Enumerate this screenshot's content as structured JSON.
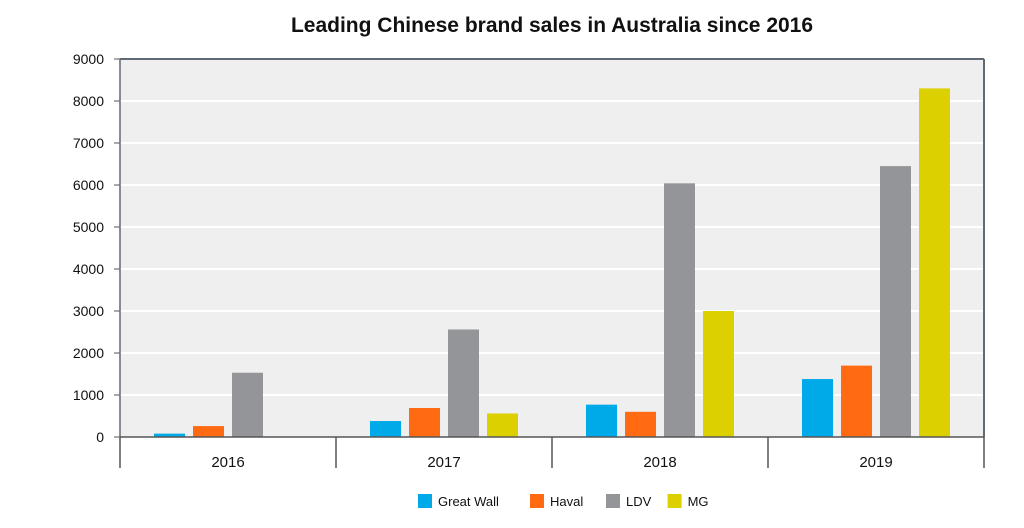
{
  "chart_data": {
    "type": "bar",
    "title": "Leading Chinese brand sales in Australia since 2016",
    "categories": [
      "2016",
      "2017",
      "2018",
      "2019"
    ],
    "series": [
      {
        "name": "Great Wall",
        "color": "#00a9e8",
        "values": [
          80,
          380,
          770,
          1380
        ]
      },
      {
        "name": "Haval",
        "color": "#ff6a13",
        "values": [
          260,
          690,
          600,
          1700
        ]
      },
      {
        "name": "LDV",
        "color": "#939598",
        "values": [
          1530,
          2560,
          6040,
          6450
        ]
      },
      {
        "name": "MG",
        "color": "#dcd000",
        "values": [
          0,
          560,
          3000,
          8300
        ]
      }
    ],
    "yticks": [
      "0",
      "1000",
      "2000",
      "3000",
      "4000",
      "5000",
      "6000",
      "7000",
      "8000",
      "9000"
    ],
    "ylim": [
      0,
      9000
    ],
    "grid": true,
    "legend_position": "bottom",
    "plot_background": "#efefef"
  }
}
